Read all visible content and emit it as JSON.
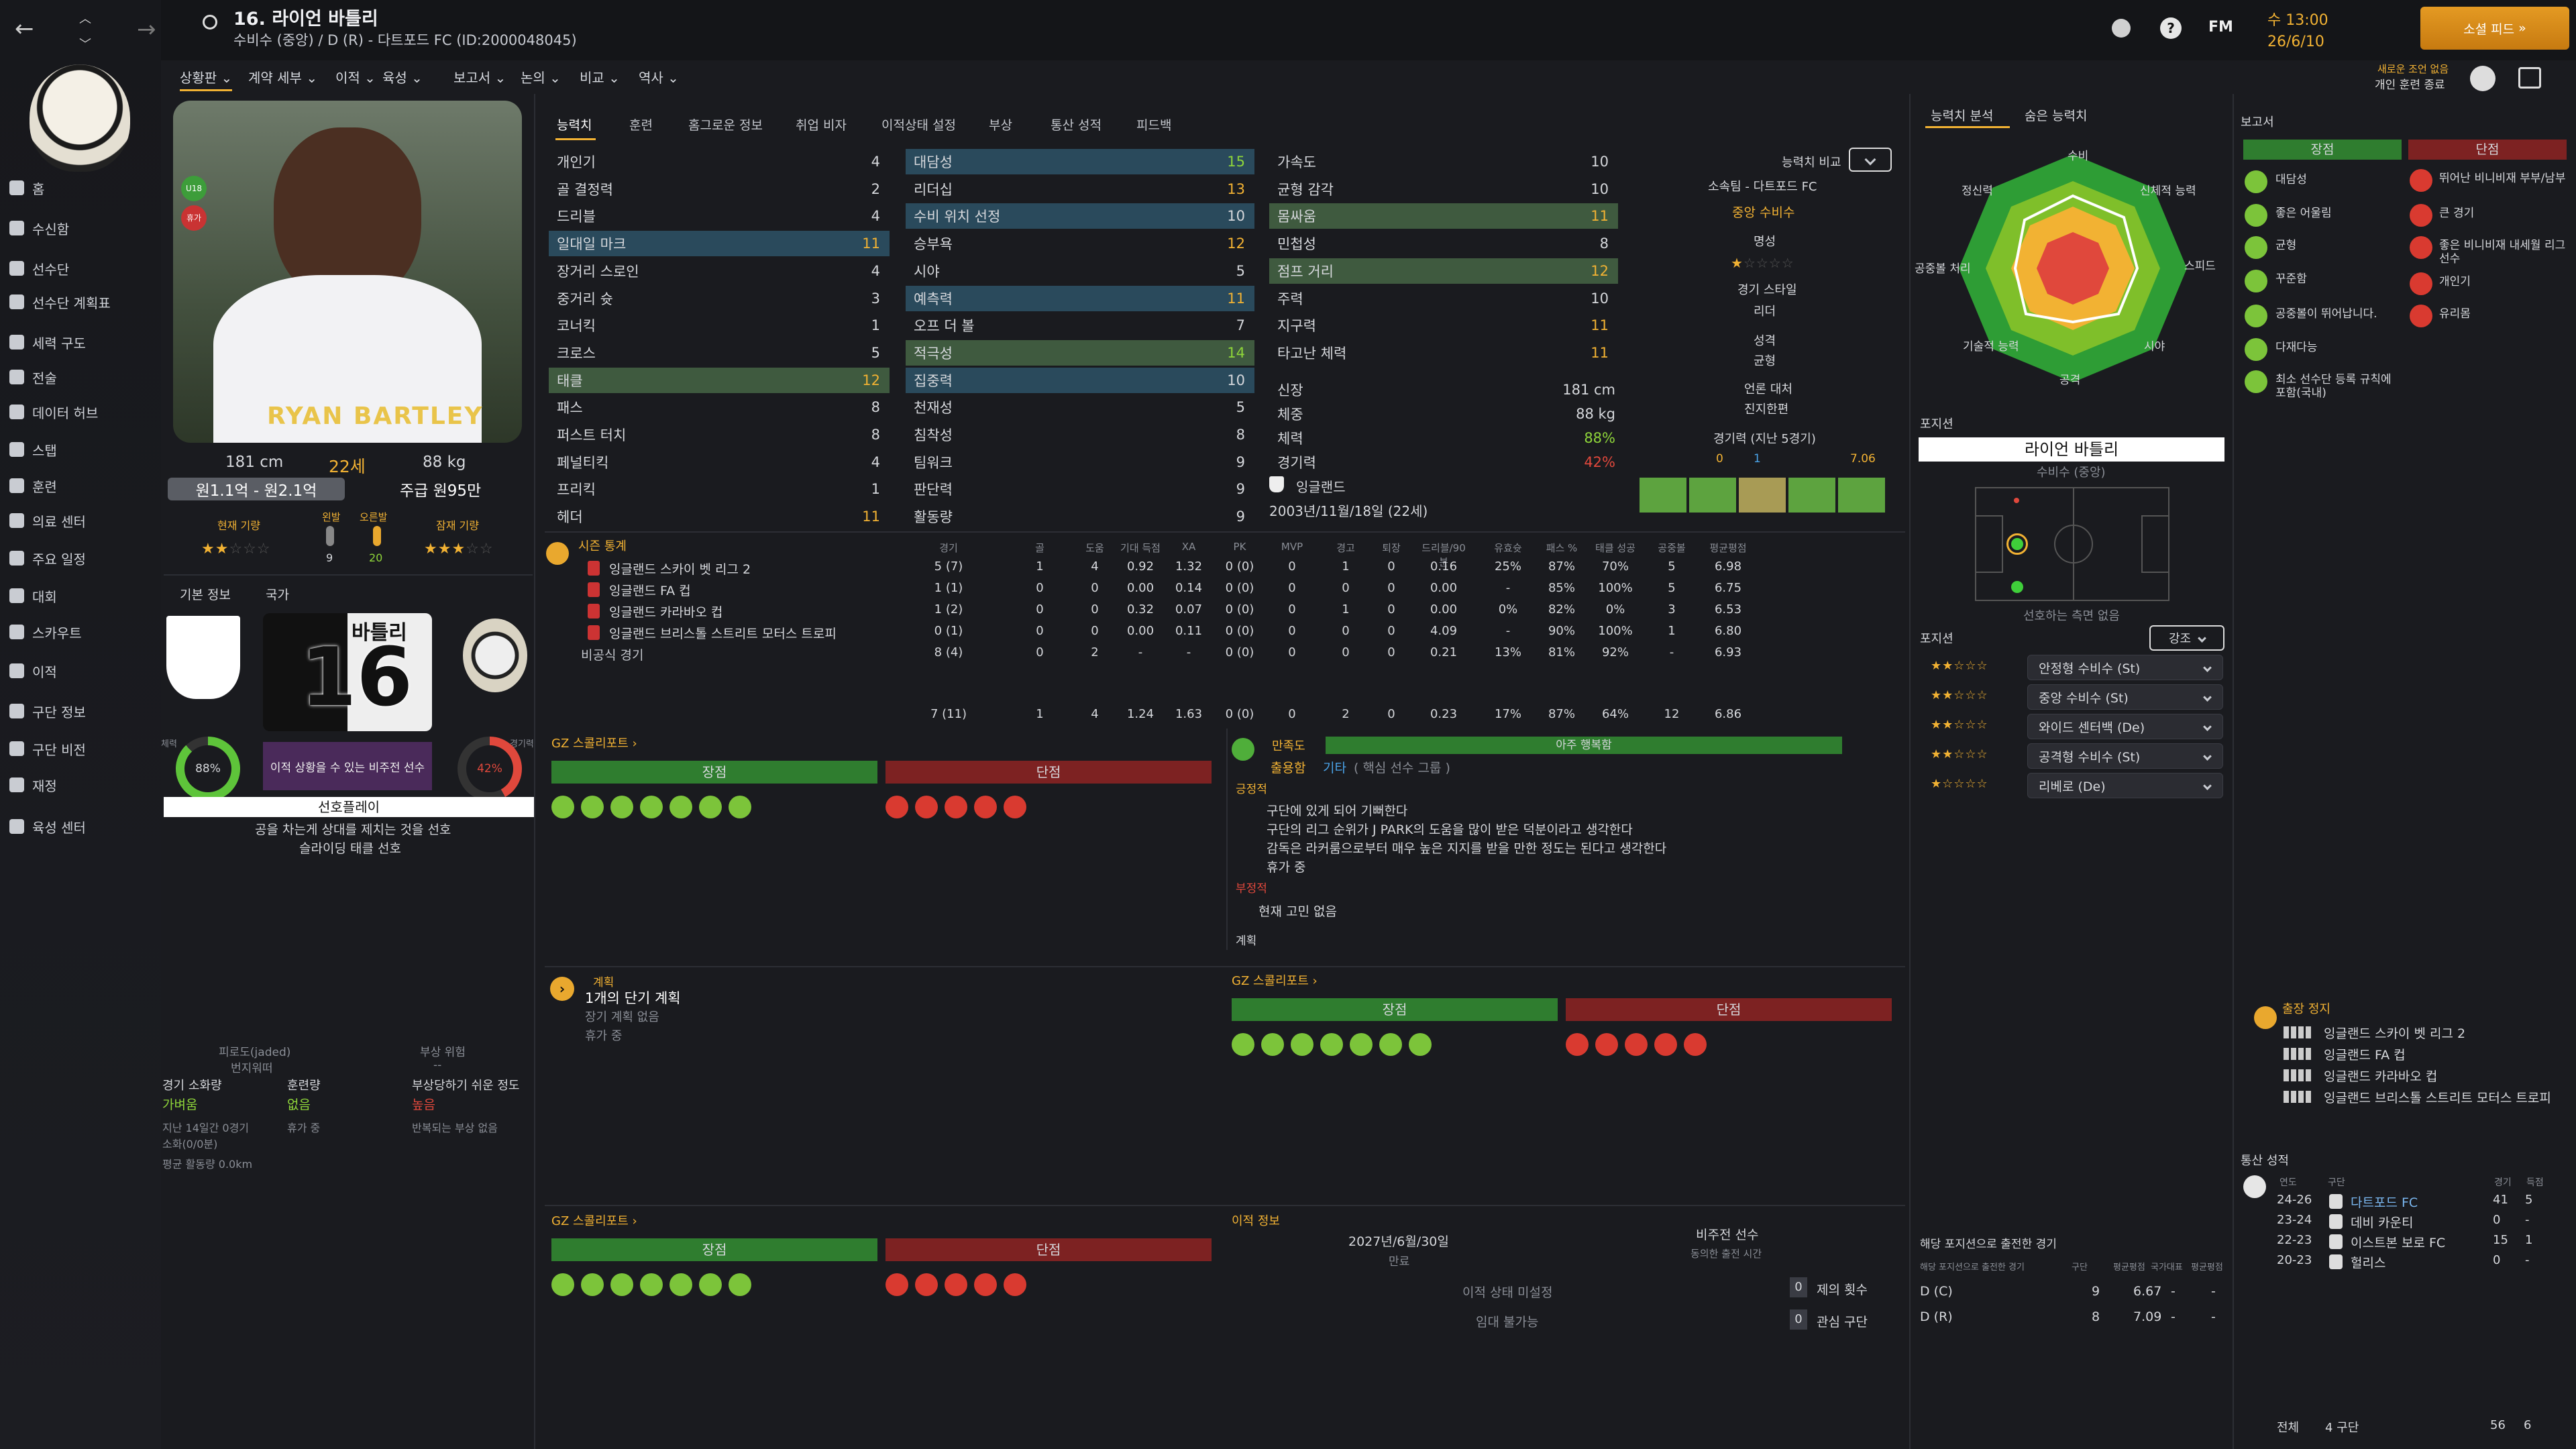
{
  "player": {
    "number_name": "16. 라이언 바틀리",
    "subtitle": "수비수 (중앙) / D (R) - 다트포드 FC (ID:2000048045)",
    "height": "181 cm",
    "age": "22세",
    "weight": "88 kg",
    "value": "원1.1억 - 원2.1억",
    "wage": "주급 원95만",
    "current_ability_label": "현재 기량",
    "potential_label": "잠재 기량",
    "left_foot_label": "왼발",
    "right_foot_label": "오른발",
    "left_foot_value": "9",
    "right_foot_value": "20",
    "shirt_name": "RYAN BARTLEY",
    "u18_badge": "U18",
    "injured_badge": "휴가"
  },
  "topbar": {
    "time": "수 13:00",
    "date": "26/6/10",
    "continue_button": "소셜 피드",
    "new_notice": "새로운 조언 없음",
    "new_notice2": "개인 훈련 종료",
    "fm_label": "FM",
    "help": "?"
  },
  "menu": [
    "상황판",
    "계약 세부",
    "이적",
    "육성",
    "보고서",
    "논의",
    "비교",
    "역사"
  ],
  "sidebar": [
    "홈",
    "수신함",
    "선수단",
    "선수단 계획표",
    "세력 구도",
    "전술",
    "데이터 허브",
    "스탭",
    "훈련",
    "의료 센터",
    "주요 일정",
    "대회",
    "스카우트",
    "이적",
    "구단 정보",
    "구단 비전",
    "재정",
    "육성 센터"
  ],
  "tabs": [
    "능력치",
    "훈련",
    "홈그로운 정보",
    "취업 비자",
    "이적상태 설정",
    "부상",
    "통산 성적",
    "피드백"
  ],
  "attributes": {
    "technical": [
      {
        "name": "개인기",
        "value": "4"
      },
      {
        "name": "골 결정력",
        "value": "2"
      },
      {
        "name": "드리블",
        "value": "4"
      },
      {
        "name": "일대일 마크",
        "value": "11"
      },
      {
        "name": "장거리 스로인",
        "value": "4"
      },
      {
        "name": "중거리 슛",
        "value": "3"
      },
      {
        "name": "코너킥",
        "value": "1"
      },
      {
        "name": "크로스",
        "value": "5"
      },
      {
        "name": "태클",
        "value": "12"
      },
      {
        "name": "패스",
        "value": "8"
      },
      {
        "name": "퍼스트 터치",
        "value": "8"
      },
      {
        "name": "페널티킥",
        "value": "4"
      },
      {
        "name": "프리킥",
        "value": "1"
      },
      {
        "name": "헤더",
        "value": "11"
      }
    ],
    "mental": [
      {
        "name": "대담성",
        "value": "15"
      },
      {
        "name": "리더십",
        "value": "13"
      },
      {
        "name": "수비 위치 선정",
        "value": "10"
      },
      {
        "name": "승부욕",
        "value": "12"
      },
      {
        "name": "시야",
        "value": "5"
      },
      {
        "name": "예측력",
        "value": "11"
      },
      {
        "name": "오프 더 볼",
        "value": "7"
      },
      {
        "name": "적극성",
        "value": "14"
      },
      {
        "name": "집중력",
        "value": "10"
      },
      {
        "name": "천재성",
        "value": "5"
      },
      {
        "name": "침착성",
        "value": "8"
      },
      {
        "name": "팀워크",
        "value": "9"
      },
      {
        "name": "판단력",
        "value": "9"
      },
      {
        "name": "활동량",
        "value": "9"
      }
    ],
    "physical": [
      {
        "name": "가속도",
        "value": "10"
      },
      {
        "name": "균형 감각",
        "value": "10"
      },
      {
        "name": "몸싸움",
        "value": "11"
      },
      {
        "name": "민첩성",
        "value": "8"
      },
      {
        "name": "점프 거리",
        "value": "12"
      },
      {
        "name": "주력",
        "value": "10"
      },
      {
        "name": "지구력",
        "value": "11"
      },
      {
        "name": "타고난 체력",
        "value": "11"
      }
    ],
    "physical_info": [
      {
        "name": "신장",
        "value": "181 cm"
      },
      {
        "name": "체중",
        "value": "88 kg"
      },
      {
        "name": "체력",
        "value": "88%"
      },
      {
        "name": "경기력",
        "value": "42%"
      }
    ],
    "nation": "잉글랜드",
    "dob": "2003년/11월/18일 (22세)"
  },
  "compare": {
    "label": "능력치 비교",
    "club": "소속팀 - 다트포드 FC",
    "role": "중앙 수비수",
    "reputation_label": "명성",
    "style_label": "경기 스타일",
    "style_value": "리더",
    "personality_label": "성격",
    "personality_value": "균형",
    "media_label": "언론 대처",
    "media_value": "진지한편",
    "form_label": "경기력 (지난 5경기)",
    "form_goals": "0",
    "form_assists": "1",
    "form_rating": "7.06"
  },
  "season_stats": {
    "title": "시즌 통계",
    "headers": [
      "경기",
      "골",
      "도움",
      "기대 득점",
      "XA",
      "PK",
      "MVP",
      "경고",
      "퇴장",
      "드리블/90분",
      "유효슛",
      "패스 %",
      "태클 성공",
      "공중볼",
      "평균평점"
    ],
    "rows": [
      {
        "comp": "잉글랜드 스카이 벳 리그 2",
        "vals": [
          "5 (7)",
          "1",
          "4",
          "0.92",
          "1.32",
          "0 (0)",
          "0",
          "1",
          "0",
          "0.16",
          "25%",
          "87%",
          "70%",
          "5",
          "6.98"
        ]
      },
      {
        "comp": "잉글랜드 FA 컵",
        "vals": [
          "1 (1)",
          "0",
          "0",
          "0.00",
          "0.14",
          "0 (0)",
          "0",
          "0",
          "0",
          "0.00",
          "-",
          "85%",
          "100%",
          "5",
          "6.75"
        ]
      },
      {
        "comp": "잉글랜드 카라바오 컵",
        "vals": [
          "1 (2)",
          "0",
          "0",
          "0.32",
          "0.07",
          "0 (0)",
          "0",
          "1",
          "0",
          "0.00",
          "0%",
          "82%",
          "0%",
          "3",
          "6.53"
        ]
      },
      {
        "comp": "잉글랜드 브리스톨 스트리트 모터스 트로피",
        "vals": [
          "0 (1)",
          "0",
          "0",
          "0.00",
          "0.11",
          "0 (0)",
          "0",
          "0",
          "0",
          "4.09",
          "-",
          "90%",
          "100%",
          "1",
          "6.80"
        ]
      },
      {
        "comp": "비공식 경기",
        "vals": [
          "8 (4)",
          "0",
          "2",
          "-",
          "-",
          "0 (0)",
          "0",
          "0",
          "0",
          "0.21",
          "13%",
          "81%",
          "92%",
          "-",
          "6.93"
        ]
      }
    ],
    "total": [
      "7 (11)",
      "1",
      "4",
      "1.24",
      "1.63",
      "0 (0)",
      "0",
      "2",
      "0",
      "0.23",
      "17%",
      "87%",
      "64%",
      "12",
      "6.86"
    ]
  },
  "scout_report": {
    "title": "GZ 스콜리포트",
    "strengths": "장점",
    "weaknesses": "단점"
  },
  "left_info": {
    "basic_tab": "기본 정보",
    "nation_tab": "국가",
    "shirt_name": "바틀리",
    "shirt_number": "16",
    "condition_label": "체력",
    "condition_value": "88%",
    "match_label": "경기력",
    "match_value": "42%",
    "non_first_team": "이적 상황을 수 있는 비주전 선수",
    "preferred_play": "선호플레이",
    "pref1": "공을 차는게 상대를 제치는 것을 선호",
    "pref2": "슬라이딩 태클 선호",
    "fatigue_label": "피로도(jaded)",
    "fatigue_value": "번지워떠",
    "injury_risk_label": "부상 위험",
    "injury_risk_value": "--",
    "match_load_label": "경기 소화량",
    "match_load_value": "가벼움",
    "training_load_label": "훈련량",
    "training_load_value": "없음",
    "injury_prone_label": "부상당하기 쉬운 정도",
    "injury_prone_value": "높음",
    "last14": "지난 14일간 0경기",
    "minutes": "소화(0/0분)",
    "rest": "휴가 중",
    "repeat": "반복되는 부상 없음",
    "avg_dist": "평균 활동량 0.0km"
  },
  "morale": {
    "label": "만족도",
    "value": "아주 행복함",
    "role_label": "출용함",
    "role_value": "기타",
    "role_extra": "( 핵심 선수 그룹 )",
    "positive_label": "긍정적",
    "p1": "구단에 있게 되어 기뻐한다",
    "p2": "구단의 리그 순위가 J PARK의 도움을 많이 받은 덕분이라고 생각한다",
    "p3": "감독은 라커룸으로부터 매우 높은 지지를 받을 만한 정도는 된다고 생각한다",
    "p4": "휴가 중",
    "negative_label": "부정적",
    "n1": "현재 고민 없음",
    "plan_label": "계획"
  },
  "plan": {
    "label": "계획",
    "title": "1개의 단기 계획",
    "sub1": "장기 계획 없음",
    "sub2": "휴가 중"
  },
  "transfer": {
    "title": "이적 정보",
    "contract": "2027년/6월/30일",
    "contract_label": "만료",
    "status": "비주전 선수",
    "status_label": "동의한 출전 시간",
    "transfer_status": "이적 상태 미설정",
    "loan_status": "임대 불가능",
    "offers_label": "제의 횟수",
    "offers_value": "0",
    "interest_label": "관심 구단",
    "interest_value": "0"
  },
  "analysis": {
    "tab1": "능력치 분석",
    "tab2": "숨은 능력치",
    "labels": [
      "수비",
      "신체적 능력",
      "스피드",
      "시야",
      "공격",
      "기술적 능력",
      "공중볼 처리",
      "정신력"
    ],
    "position_title": "포지션",
    "player_name_box": "라이언 바틀리",
    "player_pos_box": "수비수 (중앙)",
    "no_side_pos": "선호하는 측면 없음",
    "positions_label": "포지션",
    "strengths_btn": "강조",
    "roles": [
      {
        "stars": "★★☆☆☆",
        "name": "안정형 수비수 (St)"
      },
      {
        "stars": "★★☆☆☆",
        "name": "중앙 수비수 (St)"
      },
      {
        "stars": "★★☆☆☆",
        "name": "와이드 센터백 (De)"
      },
      {
        "stars": "★★☆☆☆",
        "name": "공격형 수비수 (St)"
      },
      {
        "stars": "★☆☆☆☆",
        "name": "리베로 (De)"
      }
    ],
    "pos_games_title": "해당 포지션으로 출전한 경기",
    "pos_games_header": [
      "해당 포지션으로 출전한 경기",
      "구단",
      "평균평점",
      "국가대표",
      "평균평점"
    ],
    "pos_games": [
      {
        "pos": "D (C)",
        "g": "9",
        "r": "6.67",
        "n": "-",
        "nr": "-"
      },
      {
        "pos": "D (R)",
        "g": "8",
        "r": "7.09",
        "n": "-",
        "nr": "-"
      }
    ]
  },
  "report": {
    "title": "보고서",
    "strengths": "장점",
    "weaknesses": "단점",
    "pros": [
      "대담성",
      "좋은 어울림",
      "균형",
      "꾸준함",
      "공중볼이 뛰어납니다.",
      "다재다능",
      "최소 선수단 등록 규칙에 포함(국내)"
    ],
    "cons": [
      "뛰어난 비니비재 부부/남부",
      "큰 경기",
      "좋은 비니비재 내세월 리그 선수",
      "개인기",
      "유리몸"
    ]
  },
  "suspension": {
    "title": "출장 정지",
    "items": [
      "잉글랜드 스카이 벳 리그 2",
      "잉글랜드 FA 컵",
      "잉글랜드 카라바오 컵",
      "잉글랜드 브리스톨 스트리트 모터스 트로피"
    ]
  },
  "career": {
    "title": "통산 성적",
    "headers": [
      "연도",
      "구단",
      "경기",
      "득점"
    ],
    "rows": [
      {
        "year": "24-26",
        "club": "다트포드 FC",
        "apps": "41",
        "goals": "5"
      },
      {
        "year": "23-24",
        "club": "데비 카운티",
        "apps": "0",
        "goals": "-"
      },
      {
        "year": "22-23",
        "club": "이스트본 보로 FC",
        "apps": "15",
        "goals": "1"
      },
      {
        "year": "20-23",
        "club": "헐리스",
        "apps": "0",
        "goals": "-"
      }
    ],
    "total_label": "전체",
    "total_clubs": "4 구단",
    "total_apps": "56",
    "total_goals": "6"
  },
  "colors": {
    "accent": "#f2b233",
    "green": "#2f7d2f",
    "red": "#7d2222",
    "highlight": "#2a4a5c"
  }
}
